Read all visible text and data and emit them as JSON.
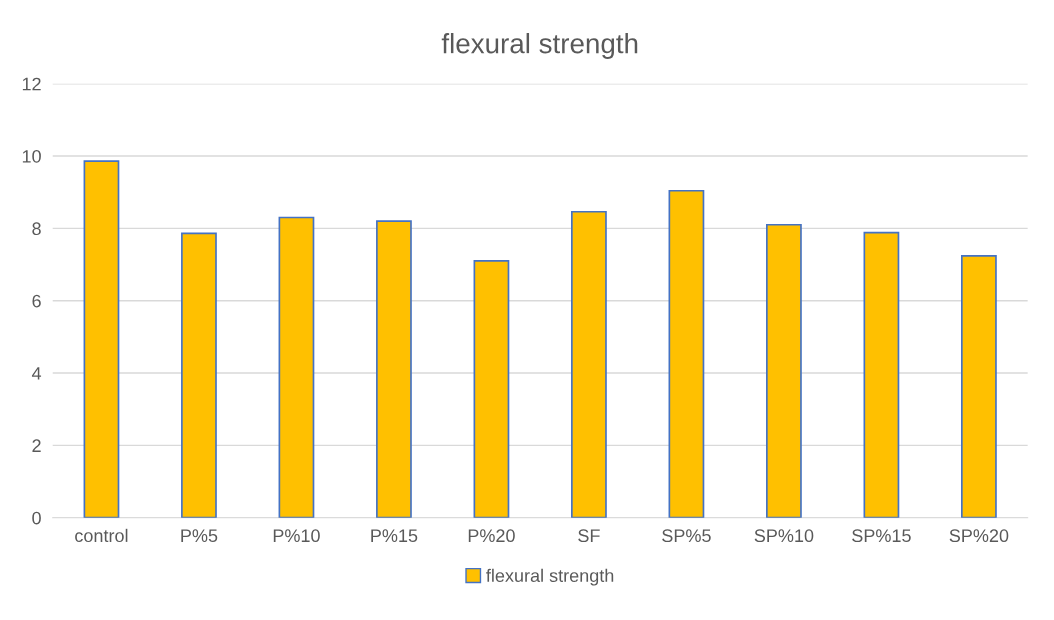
{
  "chart_data": {
    "type": "bar",
    "title": "flexural strength",
    "categories": [
      "control",
      "P%5",
      "P%10",
      "P%15",
      "P%20",
      "SF",
      "SP%5",
      "SP%10",
      "SP%15",
      "SP%20"
    ],
    "series": [
      {
        "name": "flexural strength",
        "color": "#ffc000",
        "values": [
          9.86,
          7.86,
          8.3,
          8.2,
          7.1,
          8.46,
          9.04,
          8.1,
          7.88,
          7.24
        ]
      }
    ],
    "ylim": [
      0,
      12
    ],
    "yticks": [
      0,
      2,
      4,
      6,
      8,
      10,
      12
    ],
    "grid": "y",
    "legend": "bottom"
  }
}
